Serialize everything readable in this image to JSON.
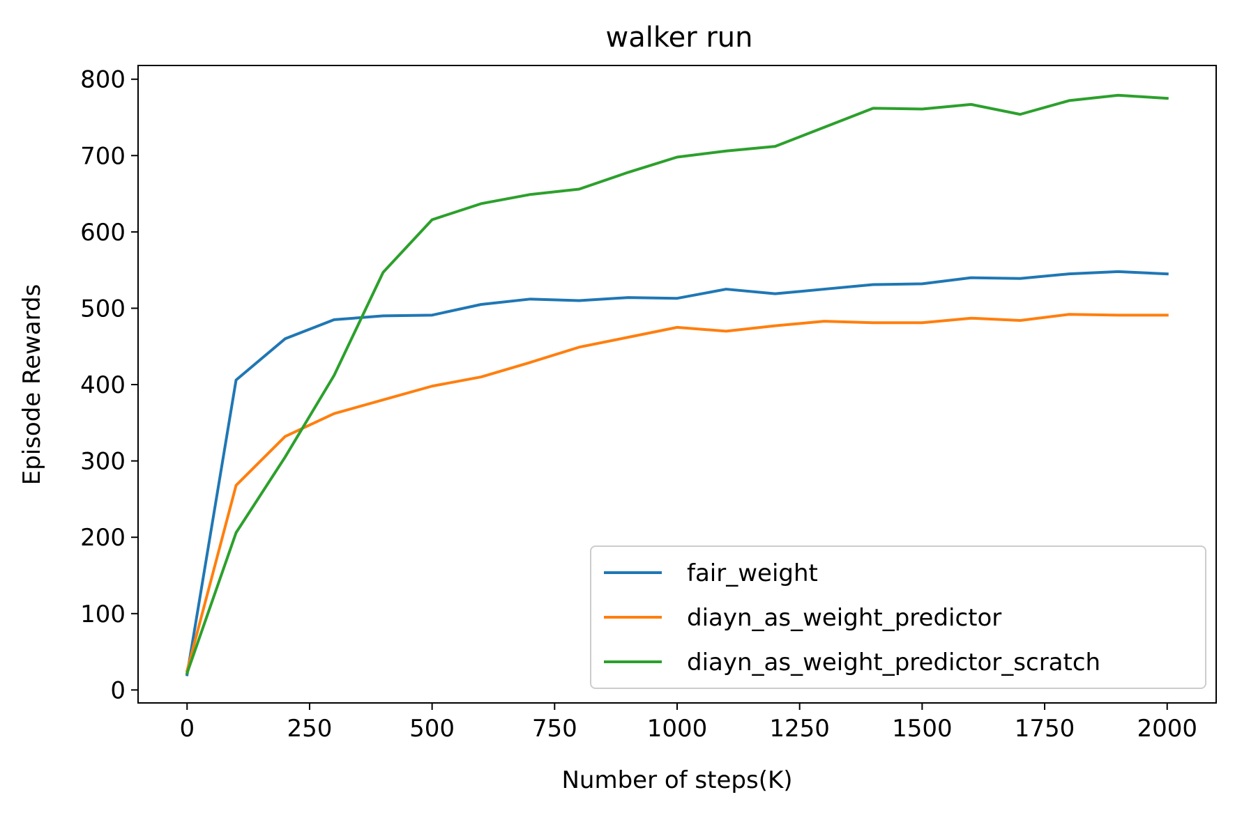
{
  "chart_data": {
    "type": "line",
    "title": "walker run",
    "xlabel": "Number of steps(K)",
    "ylabel": "Episode Rewards",
    "xlim": [
      -100,
      2100
    ],
    "ylim": [
      -17,
      818
    ],
    "xticks": [
      0,
      250,
      500,
      750,
      1000,
      1250,
      1500,
      1750,
      2000
    ],
    "yticks": [
      0,
      100,
      200,
      300,
      400,
      500,
      600,
      700,
      800
    ],
    "grid": false,
    "legend_position": "lower-right",
    "x": [
      0,
      100,
      200,
      300,
      400,
      500,
      600,
      700,
      800,
      900,
      1000,
      1100,
      1200,
      1300,
      1400,
      1500,
      1600,
      1700,
      1800,
      1900,
      2000
    ],
    "series": [
      {
        "name": "fair_weight",
        "color": "#1f77b4",
        "values": [
          20,
          406,
          460,
          485,
          490,
          491,
          505,
          512,
          510,
          514,
          513,
          525,
          519,
          525,
          531,
          532,
          540,
          539,
          545,
          548,
          545
        ]
      },
      {
        "name": "diayn_as_weight_predictor",
        "color": "#ff7f0e",
        "values": [
          25,
          268,
          332,
          362,
          380,
          398,
          410,
          429,
          449,
          462,
          475,
          470,
          477,
          483,
          481,
          481,
          487,
          484,
          492,
          491,
          491
        ]
      },
      {
        "name": "diayn_as_weight_predictor_scratch",
        "color": "#2ca02c",
        "values": [
          22,
          206,
          305,
          412,
          547,
          616,
          637,
          649,
          656,
          678,
          698,
          706,
          712,
          737,
          762,
          761,
          767,
          754,
          772,
          779,
          775
        ]
      }
    ]
  }
}
